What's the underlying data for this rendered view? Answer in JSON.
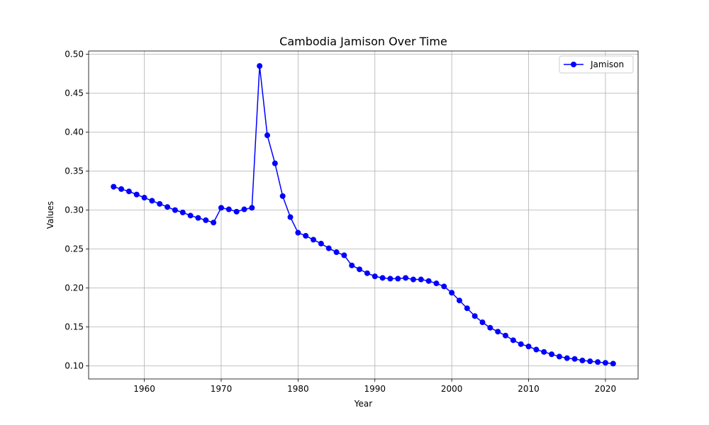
{
  "chart_data": {
    "type": "line",
    "title": "Cambodia Jamison Over Time",
    "xlabel": "Year",
    "ylabel": "Values",
    "xlim": [
      1952.75,
      2024.25
    ],
    "ylim": [
      0.0833,
      0.5042
    ],
    "x_ticks": [
      "1960",
      "1970",
      "1980",
      "1990",
      "2000",
      "2010",
      "2020"
    ],
    "y_ticks": [
      "0.10",
      "0.15",
      "0.20",
      "0.25",
      "0.30",
      "0.35",
      "0.40",
      "0.45",
      "0.50"
    ],
    "grid": true,
    "legend_position": "top-right",
    "colors": {
      "series": "#0000ff",
      "grid": "#b0b0b0",
      "axes": "#000000"
    },
    "series": [
      {
        "name": "Jamison",
        "marker": "circle",
        "x": [
          1956,
          1957,
          1958,
          1959,
          1960,
          1961,
          1962,
          1963,
          1964,
          1965,
          1966,
          1967,
          1968,
          1969,
          1970,
          1971,
          1972,
          1973,
          1974,
          1975,
          1976,
          1977,
          1978,
          1979,
          1980,
          1981,
          1982,
          1983,
          1984,
          1985,
          1986,
          1987,
          1988,
          1989,
          1990,
          1991,
          1992,
          1993,
          1994,
          1995,
          1996,
          1997,
          1998,
          1999,
          2000,
          2001,
          2002,
          2003,
          2004,
          2005,
          2006,
          2007,
          2008,
          2009,
          2010,
          2011,
          2012,
          2013,
          2014,
          2015,
          2016,
          2017,
          2018,
          2019,
          2020,
          2021
        ],
        "y": [
          0.33,
          0.327,
          0.324,
          0.32,
          0.316,
          0.312,
          0.308,
          0.304,
          0.3,
          0.297,
          0.293,
          0.29,
          0.287,
          0.284,
          0.303,
          0.301,
          0.298,
          0.301,
          0.303,
          0.485,
          0.396,
          0.36,
          0.318,
          0.291,
          0.271,
          0.267,
          0.262,
          0.257,
          0.251,
          0.246,
          0.242,
          0.229,
          0.224,
          0.219,
          0.215,
          0.213,
          0.212,
          0.212,
          0.213,
          0.211,
          0.211,
          0.209,
          0.206,
          0.202,
          0.194,
          0.184,
          0.174,
          0.164,
          0.156,
          0.149,
          0.144,
          0.139,
          0.133,
          0.128,
          0.125,
          0.121,
          0.118,
          0.115,
          0.112,
          0.11,
          0.109,
          0.107,
          0.106,
          0.105,
          0.104,
          0.103
        ]
      }
    ]
  }
}
